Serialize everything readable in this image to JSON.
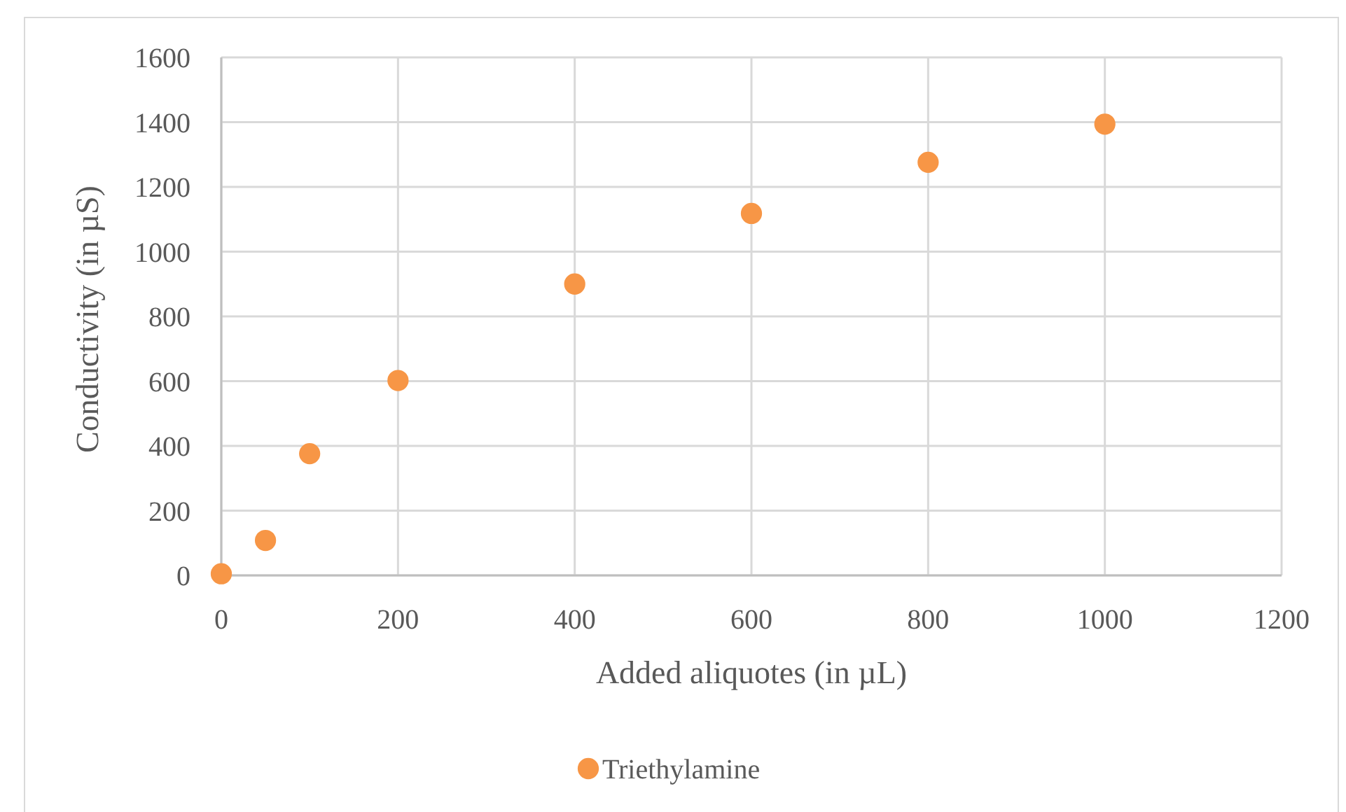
{
  "chart_data": {
    "type": "scatter",
    "xlabel": "Added aliquotes (in µL)",
    "ylabel": "Conductivity (in µS)",
    "series": [
      {
        "name": "Triethylamine",
        "color": "#f79646",
        "x": [
          0,
          50,
          100,
          200,
          400,
          600,
          800,
          1000
        ],
        "values": [
          5,
          108,
          376,
          602,
          900,
          1118,
          1276,
          1394
        ]
      }
    ],
    "xlim": [
      0,
      1200
    ],
    "xticks": [
      0,
      200,
      400,
      600,
      800,
      1000,
      1200
    ],
    "ylim": [
      0,
      1600
    ],
    "yticks": [
      0,
      200,
      400,
      600,
      800,
      1000,
      1200,
      1400,
      1600
    ],
    "grid": true,
    "legend": "bottom",
    "marker": "circle"
  }
}
